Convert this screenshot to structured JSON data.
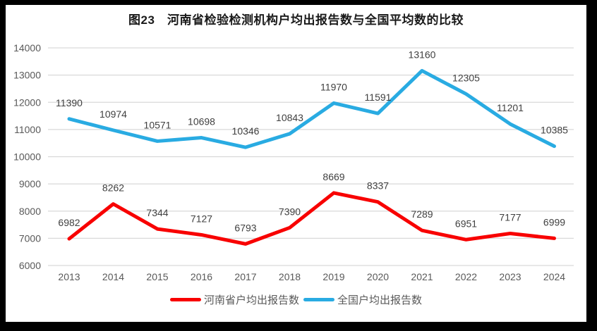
{
  "frame": {
    "border_color": "#000000",
    "panel_background": "#FFFFFF"
  },
  "chart_data": {
    "type": "line",
    "title": "图23　河南省检验检测机构户均出报告数与全国平均数的比较",
    "categories": [
      "2013",
      "2014",
      "2015",
      "2016",
      "2017",
      "2018",
      "2019",
      "2020",
      "2021",
      "2022",
      "2023",
      "2024"
    ],
    "series": [
      {
        "name": "河南省户均出报告数",
        "color": "#F80000",
        "values": [
          6982,
          8262,
          7344,
          7127,
          6793,
          7390,
          8669,
          8337,
          7289,
          6951,
          7177,
          6999
        ]
      },
      {
        "name": "全国户均出报告数",
        "color": "#29ABE2",
        "values": [
          11390,
          10974,
          10571,
          10698,
          10346,
          10843,
          11970,
          11591,
          13160,
          12305,
          11201,
          10385
        ]
      }
    ],
    "xlabel": "",
    "ylabel": "",
    "ylim": [
      6000,
      14000
    ],
    "yticks": [
      6000,
      7000,
      8000,
      9000,
      10000,
      11000,
      12000,
      13000,
      14000
    ],
    "grid": true,
    "gridline_color": "#D9D9D9",
    "axis_label_color": "#595959",
    "data_label_color": "#404040",
    "legend_position": "bottom"
  }
}
